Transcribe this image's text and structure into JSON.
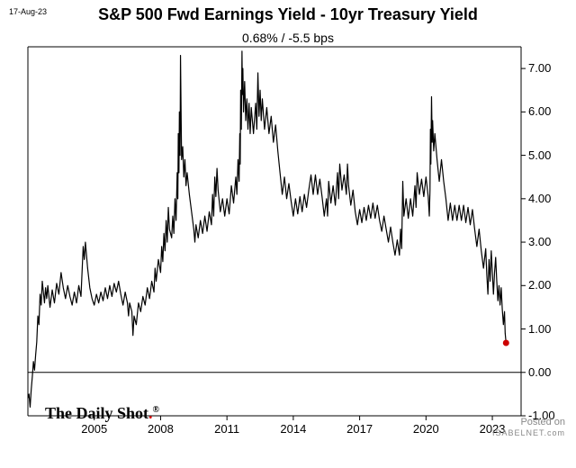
{
  "chart": {
    "type": "line",
    "date_stamp": "17-Aug-23",
    "title": "S&P 500 Fwd Earnings Yield - 10yr Treasury Yield",
    "subtitle": "0.68%  /  -5.5 bps",
    "background_color": "#ffffff",
    "line_color": "#000000",
    "line_width": 1.2,
    "axis_color": "#000000",
    "tick_color": "#000000",
    "x_axis": {
      "range_years": [
        2002,
        2024.3
      ],
      "tick_years": [
        2005,
        2008,
        2011,
        2014,
        2017,
        2020,
        2023
      ],
      "tick_labels": [
        "2005",
        "2008",
        "2011",
        "2014",
        "2017",
        "2020",
        "2023"
      ],
      "label_fontsize": 13
    },
    "y_axis": {
      "range": [
        -1.0,
        7.5
      ],
      "tick_values": [
        -1.0,
        0.0,
        1.0,
        2.0,
        3.0,
        4.0,
        5.0,
        6.0,
        7.0
      ],
      "tick_labels": [
        "-1.00",
        "0.00",
        "1.00",
        "2.00",
        "3.00",
        "4.00",
        "5.00",
        "6.00",
        "7.00"
      ],
      "label_fontsize": 13
    },
    "end_marker": {
      "year": 2023.62,
      "value": 0.68,
      "color": "#cc0000",
      "radius": 3.5
    },
    "source_label": "The Daily Shot",
    "source_marker": "®",
    "posted_label": "Posted on",
    "posted_site": "ISABELNET.com",
    "series": [
      [
        2002.0,
        -0.6
      ],
      [
        2002.05,
        -0.5
      ],
      [
        2002.1,
        -0.8
      ],
      [
        2002.15,
        -0.4
      ],
      [
        2002.2,
        -0.1
      ],
      [
        2002.25,
        0.25
      ],
      [
        2002.3,
        0.05
      ],
      [
        2002.35,
        0.4
      ],
      [
        2002.4,
        0.7
      ],
      [
        2002.45,
        1.3
      ],
      [
        2002.5,
        1.1
      ],
      [
        2002.55,
        1.8
      ],
      [
        2002.6,
        1.55
      ],
      [
        2002.65,
        2.1
      ],
      [
        2002.7,
        1.85
      ],
      [
        2002.75,
        1.6
      ],
      [
        2002.8,
        1.95
      ],
      [
        2002.85,
        1.7
      ],
      [
        2002.9,
        2.0
      ],
      [
        2002.95,
        1.75
      ],
      [
        2003.0,
        1.5
      ],
      [
        2003.1,
        1.9
      ],
      [
        2003.2,
        1.6
      ],
      [
        2003.3,
        2.05
      ],
      [
        2003.4,
        1.8
      ],
      [
        2003.5,
        2.3
      ],
      [
        2003.6,
        1.95
      ],
      [
        2003.7,
        1.7
      ],
      [
        2003.8,
        2.0
      ],
      [
        2003.9,
        1.75
      ],
      [
        2004.0,
        1.55
      ],
      [
        2004.1,
        1.85
      ],
      [
        2004.2,
        1.6
      ],
      [
        2004.3,
        2.0
      ],
      [
        2004.4,
        1.75
      ],
      [
        2004.5,
        2.9
      ],
      [
        2004.55,
        2.6
      ],
      [
        2004.6,
        3.0
      ],
      [
        2004.65,
        2.7
      ],
      [
        2004.7,
        2.4
      ],
      [
        2004.8,
        1.95
      ],
      [
        2004.9,
        1.7
      ],
      [
        2005.0,
        1.55
      ],
      [
        2005.1,
        1.8
      ],
      [
        2005.2,
        1.6
      ],
      [
        2005.3,
        1.85
      ],
      [
        2005.4,
        1.65
      ],
      [
        2005.5,
        1.95
      ],
      [
        2005.6,
        1.7
      ],
      [
        2005.7,
        2.0
      ],
      [
        2005.8,
        1.75
      ],
      [
        2005.9,
        2.05
      ],
      [
        2006.0,
        1.85
      ],
      [
        2006.1,
        2.1
      ],
      [
        2006.2,
        1.8
      ],
      [
        2006.3,
        1.55
      ],
      [
        2006.4,
        1.85
      ],
      [
        2006.5,
        1.6
      ],
      [
        2006.55,
        1.3
      ],
      [
        2006.6,
        1.6
      ],
      [
        2006.7,
        1.4
      ],
      [
        2006.75,
        0.85
      ],
      [
        2006.8,
        1.3
      ],
      [
        2006.9,
        1.1
      ],
      [
        2007.0,
        1.6
      ],
      [
        2007.1,
        1.4
      ],
      [
        2007.2,
        1.75
      ],
      [
        2007.3,
        1.55
      ],
      [
        2007.4,
        1.95
      ],
      [
        2007.5,
        1.7
      ],
      [
        2007.6,
        2.1
      ],
      [
        2007.7,
        1.85
      ],
      [
        2007.75,
        2.4
      ],
      [
        2007.8,
        2.1
      ],
      [
        2007.9,
        2.6
      ],
      [
        2008.0,
        2.3
      ],
      [
        2008.05,
        2.9
      ],
      [
        2008.1,
        2.55
      ],
      [
        2008.15,
        3.2
      ],
      [
        2008.2,
        2.8
      ],
      [
        2008.25,
        3.5
      ],
      [
        2008.3,
        3.0
      ],
      [
        2008.35,
        3.8
      ],
      [
        2008.4,
        3.3
      ],
      [
        2008.5,
        3.1
      ],
      [
        2008.55,
        3.6
      ],
      [
        2008.6,
        3.2
      ],
      [
        2008.65,
        4.0
      ],
      [
        2008.7,
        3.5
      ],
      [
        2008.75,
        4.6
      ],
      [
        2008.78,
        4.0
      ],
      [
        2008.8,
        5.5
      ],
      [
        2008.83,
        4.6
      ],
      [
        2008.85,
        6.0
      ],
      [
        2008.88,
        5.0
      ],
      [
        2008.9,
        7.3
      ],
      [
        2008.93,
        5.8
      ],
      [
        2008.95,
        4.9
      ],
      [
        2009.0,
        5.2
      ],
      [
        2009.05,
        4.5
      ],
      [
        2009.1,
        4.9
      ],
      [
        2009.15,
        4.3
      ],
      [
        2009.2,
        4.6
      ],
      [
        2009.3,
        4.1
      ],
      [
        2009.4,
        3.7
      ],
      [
        2009.5,
        3.3
      ],
      [
        2009.55,
        3.0
      ],
      [
        2009.6,
        3.4
      ],
      [
        2009.7,
        3.1
      ],
      [
        2009.8,
        3.5
      ],
      [
        2009.9,
        3.2
      ],
      [
        2010.0,
        3.6
      ],
      [
        2010.1,
        3.25
      ],
      [
        2010.2,
        3.7
      ],
      [
        2010.3,
        3.4
      ],
      [
        2010.35,
        4.1
      ],
      [
        2010.4,
        3.6
      ],
      [
        2010.45,
        4.5
      ],
      [
        2010.5,
        4.05
      ],
      [
        2010.55,
        4.7
      ],
      [
        2010.6,
        4.2
      ],
      [
        2010.7,
        3.7
      ],
      [
        2010.8,
        4.0
      ],
      [
        2010.9,
        3.6
      ],
      [
        2011.0,
        4.0
      ],
      [
        2011.1,
        3.65
      ],
      [
        2011.2,
        4.3
      ],
      [
        2011.3,
        3.9
      ],
      [
        2011.4,
        4.5
      ],
      [
        2011.45,
        4.1
      ],
      [
        2011.5,
        4.9
      ],
      [
        2011.55,
        4.4
      ],
      [
        2011.58,
        5.5
      ],
      [
        2011.6,
        4.8
      ],
      [
        2011.62,
        6.5
      ],
      [
        2011.65,
        5.6
      ],
      [
        2011.68,
        7.4
      ],
      [
        2011.7,
        6.4
      ],
      [
        2011.72,
        7.0
      ],
      [
        2011.75,
        6.0
      ],
      [
        2011.8,
        6.7
      ],
      [
        2011.85,
        5.8
      ],
      [
        2011.9,
        6.3
      ],
      [
        2011.95,
        5.6
      ],
      [
        2012.0,
        6.2
      ],
      [
        2012.05,
        5.5
      ],
      [
        2012.1,
        6.1
      ],
      [
        2012.2,
        5.5
      ],
      [
        2012.3,
        6.2
      ],
      [
        2012.35,
        5.6
      ],
      [
        2012.4,
        6.9
      ],
      [
        2012.45,
        5.9
      ],
      [
        2012.5,
        6.5
      ],
      [
        2012.55,
        5.8
      ],
      [
        2012.6,
        6.3
      ],
      [
        2012.7,
        5.6
      ],
      [
        2012.8,
        6.1
      ],
      [
        2012.9,
        5.5
      ],
      [
        2013.0,
        5.9
      ],
      [
        2013.1,
        5.3
      ],
      [
        2013.2,
        5.7
      ],
      [
        2013.3,
        5.1
      ],
      [
        2013.4,
        4.6
      ],
      [
        2013.5,
        4.1
      ],
      [
        2013.6,
        4.5
      ],
      [
        2013.7,
        4.0
      ],
      [
        2013.8,
        4.35
      ],
      [
        2013.9,
        3.95
      ],
      [
        2014.0,
        3.6
      ],
      [
        2014.1,
        4.0
      ],
      [
        2014.2,
        3.65
      ],
      [
        2014.3,
        4.05
      ],
      [
        2014.4,
        3.7
      ],
      [
        2014.5,
        4.1
      ],
      [
        2014.6,
        3.8
      ],
      [
        2014.7,
        4.2
      ],
      [
        2014.8,
        4.55
      ],
      [
        2014.9,
        4.1
      ],
      [
        2015.0,
        4.55
      ],
      [
        2015.1,
        4.1
      ],
      [
        2015.2,
        4.45
      ],
      [
        2015.3,
        4.05
      ],
      [
        2015.4,
        3.6
      ],
      [
        2015.5,
        4.0
      ],
      [
        2015.55,
        3.6
      ],
      [
        2015.6,
        4.4
      ],
      [
        2015.7,
        3.9
      ],
      [
        2015.8,
        4.3
      ],
      [
        2015.9,
        3.85
      ],
      [
        2016.0,
        4.6
      ],
      [
        2016.05,
        4.0
      ],
      [
        2016.1,
        4.8
      ],
      [
        2016.2,
        4.2
      ],
      [
        2016.3,
        4.55
      ],
      [
        2016.4,
        4.1
      ],
      [
        2016.45,
        4.8
      ],
      [
        2016.5,
        4.3
      ],
      [
        2016.6,
        3.85
      ],
      [
        2016.7,
        4.2
      ],
      [
        2016.8,
        3.7
      ],
      [
        2016.9,
        3.4
      ],
      [
        2017.0,
        3.75
      ],
      [
        2017.1,
        3.45
      ],
      [
        2017.2,
        3.8
      ],
      [
        2017.3,
        3.5
      ],
      [
        2017.4,
        3.85
      ],
      [
        2017.5,
        3.55
      ],
      [
        2017.6,
        3.9
      ],
      [
        2017.7,
        3.55
      ],
      [
        2017.8,
        3.85
      ],
      [
        2017.9,
        3.5
      ],
      [
        2018.0,
        3.25
      ],
      [
        2018.1,
        3.6
      ],
      [
        2018.2,
        3.3
      ],
      [
        2018.3,
        3.0
      ],
      [
        2018.4,
        3.35
      ],
      [
        2018.5,
        3.0
      ],
      [
        2018.6,
        2.7
      ],
      [
        2018.7,
        3.05
      ],
      [
        2018.8,
        2.7
      ],
      [
        2018.85,
        3.3
      ],
      [
        2018.9,
        2.85
      ],
      [
        2018.95,
        4.4
      ],
      [
        2019.0,
        3.6
      ],
      [
        2019.1,
        4.0
      ],
      [
        2019.2,
        3.55
      ],
      [
        2019.3,
        4.0
      ],
      [
        2019.4,
        3.6
      ],
      [
        2019.5,
        4.3
      ],
      [
        2019.55,
        3.8
      ],
      [
        2019.6,
        4.6
      ],
      [
        2019.7,
        4.1
      ],
      [
        2019.8,
        4.45
      ],
      [
        2019.9,
        4.05
      ],
      [
        2020.0,
        4.5
      ],
      [
        2020.1,
        4.05
      ],
      [
        2020.15,
        3.6
      ],
      [
        2020.18,
        4.2
      ],
      [
        2020.2,
        5.6
      ],
      [
        2020.22,
        4.8
      ],
      [
        2020.25,
        6.35
      ],
      [
        2020.28,
        5.3
      ],
      [
        2020.3,
        5.8
      ],
      [
        2020.35,
        5.1
      ],
      [
        2020.4,
        5.5
      ],
      [
        2020.5,
        4.9
      ],
      [
        2020.6,
        4.4
      ],
      [
        2020.7,
        4.9
      ],
      [
        2020.8,
        4.4
      ],
      [
        2020.9,
        4.0
      ],
      [
        2021.0,
        3.5
      ],
      [
        2021.1,
        3.9
      ],
      [
        2021.2,
        3.5
      ],
      [
        2021.3,
        3.85
      ],
      [
        2021.4,
        3.5
      ],
      [
        2021.5,
        3.85
      ],
      [
        2021.6,
        3.5
      ],
      [
        2021.7,
        3.85
      ],
      [
        2021.8,
        3.45
      ],
      [
        2021.9,
        3.8
      ],
      [
        2022.0,
        3.4
      ],
      [
        2022.1,
        3.75
      ],
      [
        2022.2,
        3.3
      ],
      [
        2022.3,
        2.9
      ],
      [
        2022.4,
        3.3
      ],
      [
        2022.5,
        2.8
      ],
      [
        2022.6,
        2.4
      ],
      [
        2022.7,
        2.85
      ],
      [
        2022.75,
        2.25
      ],
      [
        2022.8,
        1.8
      ],
      [
        2022.85,
        2.6
      ],
      [
        2022.9,
        2.1
      ],
      [
        2022.95,
        2.8
      ],
      [
        2023.0,
        2.3
      ],
      [
        2023.05,
        1.8
      ],
      [
        2023.1,
        2.3
      ],
      [
        2023.15,
        2.65
      ],
      [
        2023.2,
        2.1
      ],
      [
        2023.25,
        1.65
      ],
      [
        2023.3,
        2.0
      ],
      [
        2023.35,
        1.55
      ],
      [
        2023.4,
        1.95
      ],
      [
        2023.45,
        1.45
      ],
      [
        2023.5,
        1.1
      ],
      [
        2023.55,
        1.4
      ],
      [
        2023.58,
        0.9
      ],
      [
        2023.62,
        0.68
      ]
    ]
  }
}
